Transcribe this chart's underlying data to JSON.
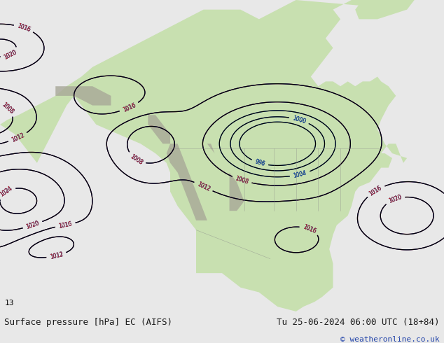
{
  "title_left": "Surface pressure [hPa] EC (AIFS)",
  "title_right": "Tu 25-06-2024 06:00 UTC (18+84)",
  "copyright": "© weatheronline.co.uk",
  "ocean_color": "#e8e8e8",
  "land_color": "#c8e0b0",
  "mountain_color": "#a8a898",
  "border_color": "#888888",
  "fig_width": 6.34,
  "fig_height": 4.9,
  "footer_bg": "#dde8f0",
  "footer_text_color": "#1a1a1a",
  "title_font_size": 9.0,
  "copyright_font_size": 8.0,
  "copyright_color": "#2244aa"
}
